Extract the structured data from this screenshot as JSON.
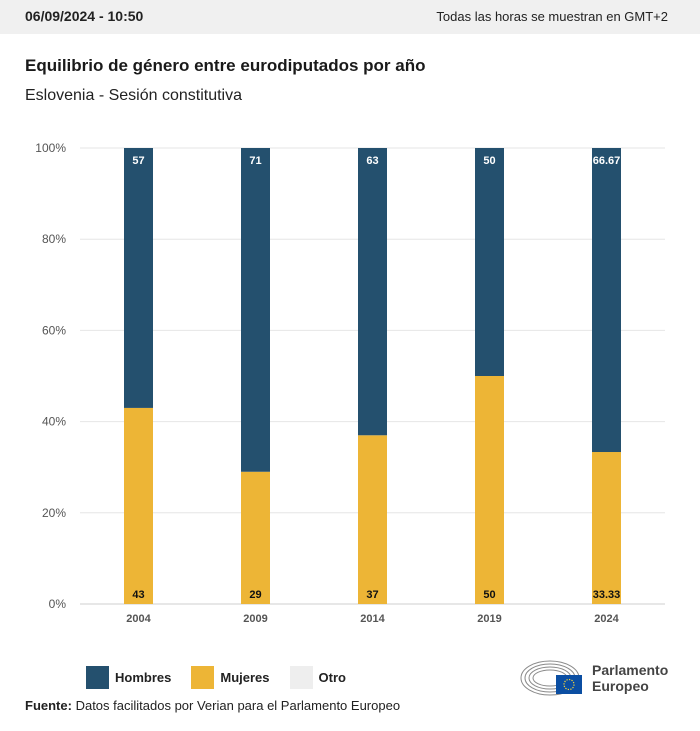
{
  "header": {
    "datetime": "06/09/2024 - 10:50",
    "timezone_note": "Todas las horas se muestran en GMT+2"
  },
  "title": "Equilibrio de género entre eurodiputados por año",
  "subtitle": "Eslovenia - Sesión constitutiva",
  "colors": {
    "hombres": "#24506e",
    "mujeres": "#edb536",
    "otro": "#eeeeee"
  },
  "legend": [
    {
      "key": "hombres",
      "label": "Hombres"
    },
    {
      "key": "mujeres",
      "label": "Mujeres"
    },
    {
      "key": "otro",
      "label": "Otro"
    }
  ],
  "source": {
    "label": "Fuente:",
    "text": "Datos facilitados por Verian para el Parlamento Europeo"
  },
  "logo": {
    "line1": "Parlamento",
    "line2": "Europeo"
  },
  "chart_data": {
    "type": "bar",
    "stacked": true,
    "categories": [
      "2004",
      "2009",
      "2014",
      "2019",
      "2024"
    ],
    "series": [
      {
        "name": "Mujeres",
        "values": [
          43,
          29,
          37,
          50,
          33.33
        ],
        "labels": [
          "43",
          "29",
          "37",
          "50",
          "33.33"
        ]
      },
      {
        "name": "Hombres",
        "values": [
          57,
          71,
          63,
          50,
          66.67
        ],
        "labels": [
          "57",
          "71",
          "63",
          "50",
          "66.67"
        ]
      }
    ],
    "y_ticks": [
      "0%",
      "20%",
      "40%",
      "60%",
      "80%",
      "100%"
    ],
    "ylim": [
      0,
      100
    ],
    "grid": true,
    "legend_position": "bottom-left"
  }
}
